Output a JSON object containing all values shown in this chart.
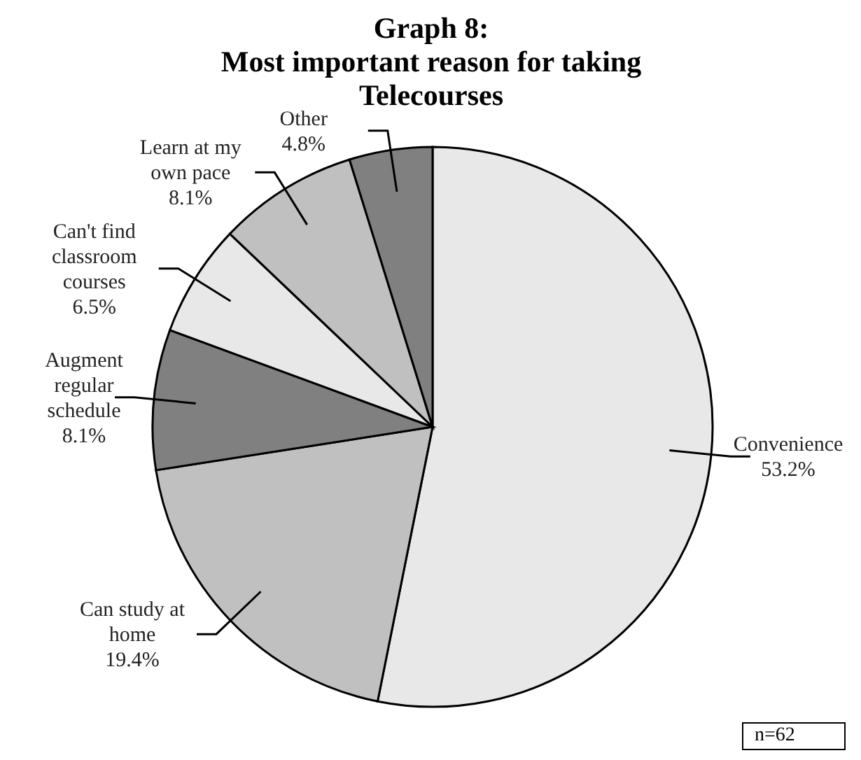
{
  "chart_data": {
    "type": "pie",
    "title": "Graph 8:",
    "subtitle": "Most important reason for taking Telecourses",
    "categories": [
      "Convenience",
      "Can study at home",
      "Augment regular schedule",
      "Can't find classroom courses",
      "Learn at my own pace",
      "Other"
    ],
    "values": [
      53.2,
      19.4,
      8.1,
      6.5,
      8.1,
      4.8
    ],
    "value_labels": [
      "53.2%",
      "19.4%",
      "8.1%",
      "6.5%",
      "8.1%",
      "4.8%"
    ],
    "colors": [
      "#e8e8e8",
      "#c0c0c0",
      "#808080",
      "#e8e8e8",
      "#c0c0c0",
      "#808080"
    ],
    "annotations": [
      "n=62"
    ]
  }
}
